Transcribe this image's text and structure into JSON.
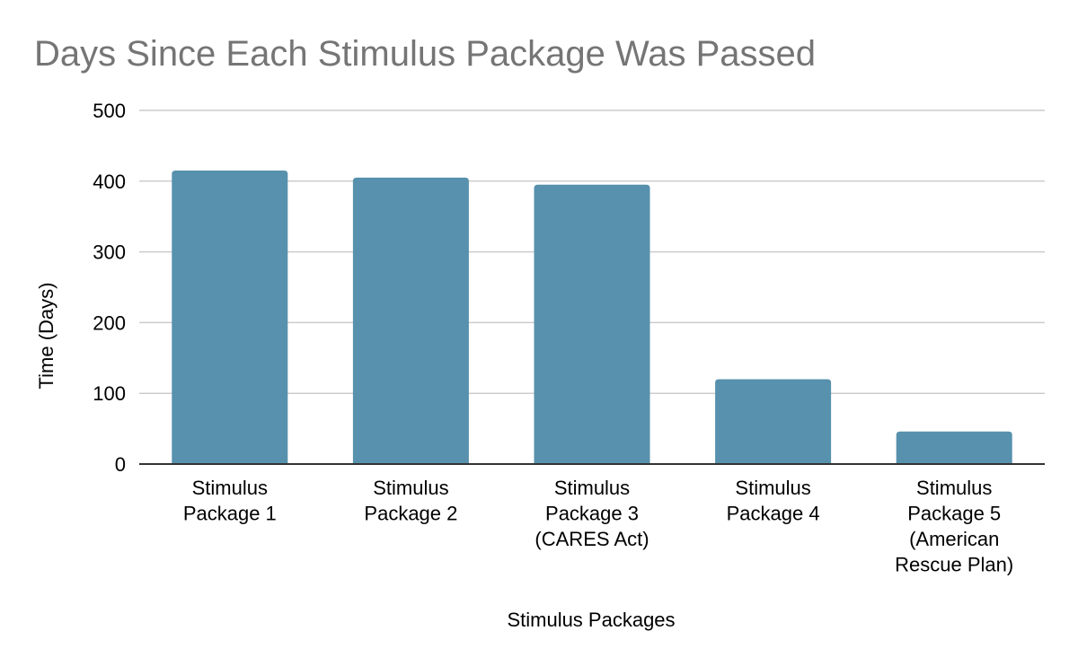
{
  "chart_data": {
    "type": "bar",
    "title": "Days Since Each Stimulus Package Was Passed",
    "xlabel": "Stimulus Packages",
    "ylabel": "Time (Days)",
    "ylim": [
      0,
      500
    ],
    "yticks": [
      0,
      100,
      200,
      300,
      400,
      500
    ],
    "grid": true,
    "categories": [
      [
        "Stimulus",
        "Package 1"
      ],
      [
        "Stimulus",
        "Package 2"
      ],
      [
        "Stimulus",
        "Package 3",
        "(CARES Act)"
      ],
      [
        "Stimulus",
        "Package 4"
      ],
      [
        "Stimulus",
        "Package 5",
        "(American",
        "Rescue Plan)"
      ]
    ],
    "values": [
      415,
      405,
      395,
      120,
      46
    ],
    "colors": {
      "bar": "#5891ad",
      "grid": "#cccccc",
      "axis": "#333333",
      "title": "#757575",
      "text": "#000000"
    }
  }
}
